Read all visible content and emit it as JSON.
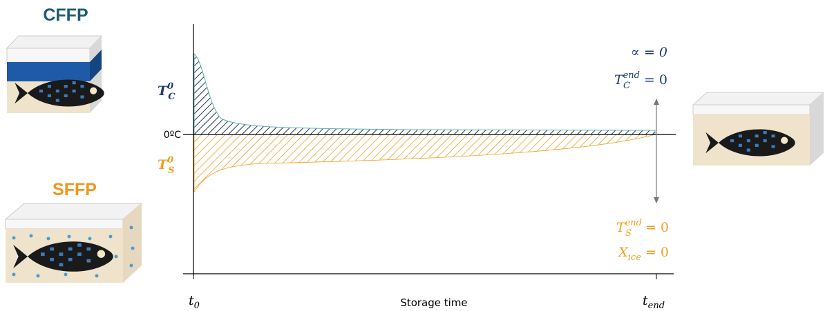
{
  "labels": {
    "cffp": "CFFP",
    "sffp": "SFFP",
    "zero": "0ºC",
    "tc0": {
      "base": "T",
      "sup": "0",
      "sub": "C"
    },
    "ts0": {
      "base": "T",
      "sup": "0",
      "sub": "S"
    },
    "alpha": "∝ = 0",
    "tcend": {
      "base": "T",
      "sup": "end",
      "sub": "C",
      "rest": " = 0"
    },
    "tsend": {
      "base": "T",
      "sup": "end",
      "sub": "S",
      "rest": " = 0"
    },
    "xice": {
      "base": "X",
      "sub": "ice",
      "rest": " = 0"
    },
    "t0": {
      "base": "t",
      "sub": "0"
    },
    "tend": {
      "base": "t",
      "sub": "end"
    },
    "xlabel": "Storage time"
  }
}
